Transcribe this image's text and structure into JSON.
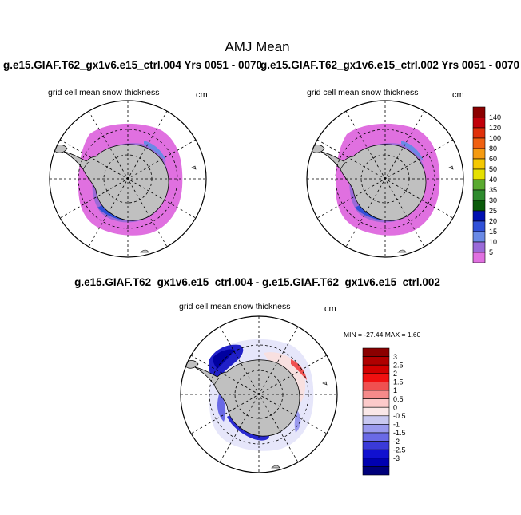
{
  "title": "AMJ Mean",
  "cases": {
    "left": "g.e15.GIAF.T62_gx1v6.e15_ctrl.004  Yrs 0051 - 0070",
    "right": "g.e15.GIAF.T62_gx1v6.e15_ctrl.002  Yrs 0051 - 0070"
  },
  "panels": {
    "left": {
      "variable": "grid cell mean snow thickness",
      "units": "cm"
    },
    "right": {
      "variable": "grid cell mean snow thickness",
      "units": "cm"
    },
    "diff": {
      "title": "g.e15.GIAF.T62_gx1v6.e15_ctrl.004 - g.e15.GIAF.T62_gx1v6.e15_ctrl.002",
      "variable": "grid cell mean snow thickness",
      "units": "cm",
      "minmax": "MIN = -27.44 MAX =   1.60"
    }
  },
  "colorbar_abs": {
    "labels": [
      "140",
      "120",
      "100",
      "80",
      "60",
      "50",
      "40",
      "35",
      "30",
      "25",
      "20",
      "15",
      "10",
      "5"
    ],
    "colors": [
      "#8b0000",
      "#c1000a",
      "#e0300a",
      "#f06010",
      "#f59a10",
      "#f5c800",
      "#e6e000",
      "#5aaa30",
      "#2e8b2e",
      "#0a5a0a",
      "#0010b0",
      "#3050d8",
      "#6a8ae6",
      "#9a6ad8",
      "#e070e0"
    ]
  },
  "colorbar_diff": {
    "labels": [
      "3",
      "2.5",
      "2",
      "1.5",
      "1",
      "0.5",
      "0",
      "-0.5",
      "-1",
      "-1.5",
      "-2",
      "-2.5",
      "-3"
    ],
    "colors": [
      "#8b0000",
      "#b00000",
      "#d20000",
      "#f01010",
      "#f05050",
      "#f58a8a",
      "#fccaca",
      "#fae8e8",
      "#c8c8f0",
      "#9a9aee",
      "#6a6ae6",
      "#3a3ad8",
      "#1010d0",
      "#0000b0",
      "#00007a"
    ]
  }
}
